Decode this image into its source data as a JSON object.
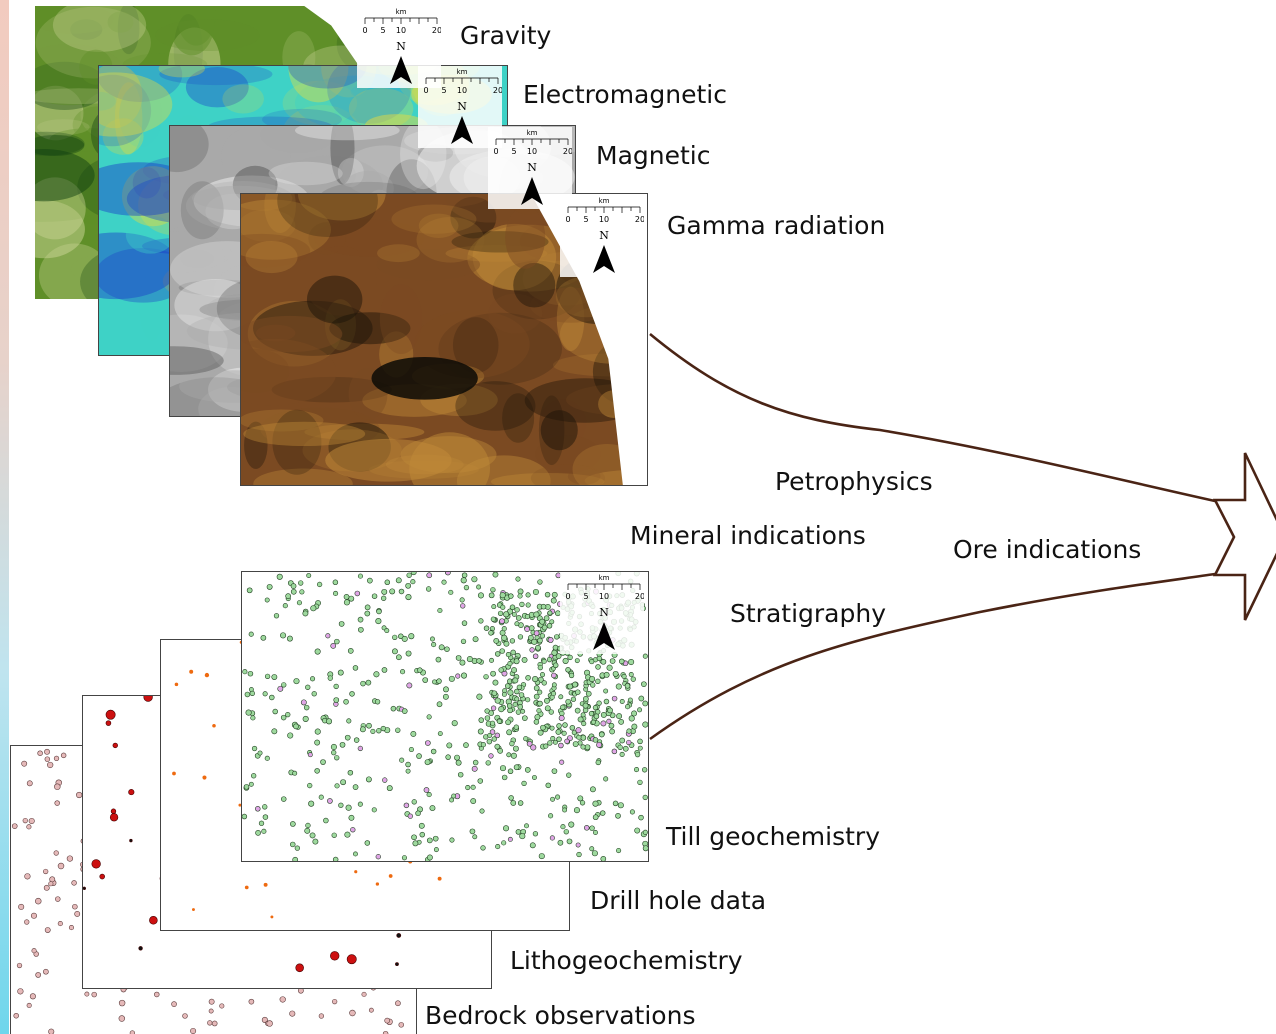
{
  "raster_layers": [
    {
      "label": "Gravity",
      "colors": [
        "#0f3f10",
        "#5f8f28",
        "#d1d89b"
      ]
    },
    {
      "label": "Electromagnetic",
      "colors": [
        "#1c45c8",
        "#3ed2c6",
        "#e8dc3c"
      ]
    },
    {
      "label": "Magnetic",
      "colors": [
        "#4f4f4f",
        "#a9a9a9",
        "#f1f1f1"
      ]
    },
    {
      "label": "Gamma radiation",
      "colors": [
        "#1b1208",
        "#7b4a22",
        "#c08a38"
      ]
    }
  ],
  "point_layers": [
    {
      "label": "Bedrock observations",
      "point_color": "#e5b9b9"
    },
    {
      "label": "Lithogeochemistry",
      "point_color": "#cc1010"
    },
    {
      "label": "Drill hole data",
      "point_color": "#ee6a10"
    },
    {
      "label": "Till geochemistry",
      "point_color": "#9ed99e"
    }
  ],
  "other_data": [
    "Petrophysics",
    "Mineral indications",
    "Ore indications",
    "Stratigraphy"
  ],
  "scale_bar": {
    "unit": "km",
    "ticks": [
      "0",
      "5",
      "10",
      "20"
    ],
    "north": "N"
  },
  "connector_color": "#4a2415"
}
